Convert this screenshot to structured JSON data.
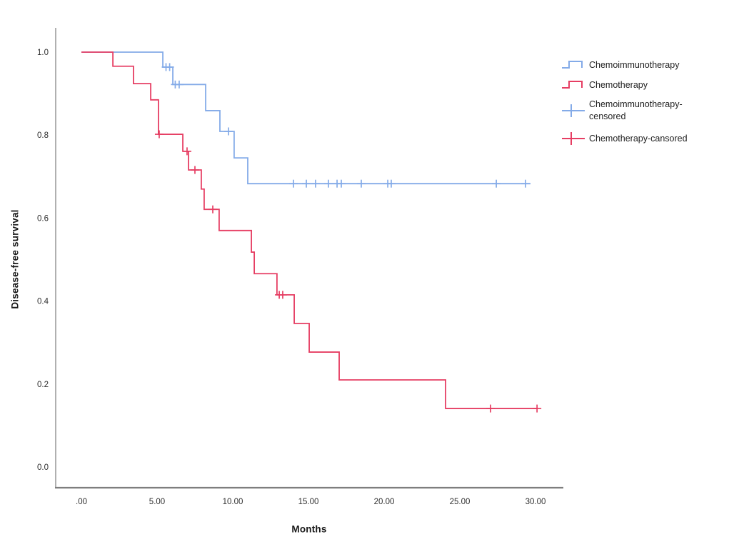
{
  "figure": {
    "background": "#ffffff",
    "axis_color": "#8f8f8f",
    "tick_text_color": "#2e2e2e",
    "title_text_color": "#1a1a1a"
  },
  "chart_data": {
    "type": "line",
    "subtype": "kaplan-meier-step",
    "title": "",
    "xlabel": "Months",
    "ylabel": "Disease-free survival",
    "x_ticks": [
      ".00",
      "5.00",
      "10.00",
      "15.00",
      "20.00",
      "25.00",
      "30.00"
    ],
    "x_tick_values": [
      0,
      5,
      10,
      15,
      20,
      25,
      30
    ],
    "y_ticks": [
      "1.0",
      "0.8",
      "0.6",
      "0.4",
      "0.2",
      "0.0"
    ],
    "y_tick_values": [
      1.0,
      0.8,
      0.6,
      0.4,
      0.2,
      0.0
    ],
    "xlim": [
      -1.7,
      31.8
    ],
    "ylim": [
      -0.05,
      1.06
    ],
    "grid": false,
    "legend_position": "right",
    "series": [
      {
        "name": "Chemoimmunotherapy",
        "color": "#84ABE8",
        "start": [
          0,
          1.0
        ],
        "steps": [
          [
            5.38,
            0.964
          ],
          [
            6.04,
            0.922
          ],
          [
            8.21,
            0.859
          ],
          [
            9.15,
            0.809
          ],
          [
            10.09,
            0.745
          ],
          [
            10.99,
            0.683
          ]
        ],
        "end_time": 29.67,
        "censored": [
          [
            5.59,
            0.964
          ],
          [
            5.83,
            0.964
          ],
          [
            6.2,
            0.922
          ],
          [
            6.46,
            0.922
          ],
          [
            9.72,
            0.809
          ],
          [
            14.01,
            0.683
          ],
          [
            14.86,
            0.683
          ],
          [
            15.47,
            0.683
          ],
          [
            16.32,
            0.683
          ],
          [
            16.89,
            0.683
          ],
          [
            17.17,
            0.683
          ],
          [
            18.49,
            0.683
          ],
          [
            20.24,
            0.683
          ],
          [
            20.47,
            0.683
          ],
          [
            27.41,
            0.683
          ],
          [
            29.34,
            0.683
          ]
        ]
      },
      {
        "name": "Chemotherapy",
        "color": "#E63E63",
        "start": [
          0,
          1.0
        ],
        "steps": [
          [
            2.08,
            0.966
          ],
          [
            3.44,
            0.924
          ],
          [
            4.58,
            0.885
          ],
          [
            5.09,
            0.802
          ],
          [
            6.7,
            0.761
          ],
          [
            7.08,
            0.716
          ],
          [
            7.92,
            0.67
          ],
          [
            8.11,
            0.621
          ],
          [
            9.1,
            0.57
          ],
          [
            11.23,
            0.518
          ],
          [
            11.42,
            0.466
          ],
          [
            12.92,
            0.415
          ],
          [
            14.06,
            0.346
          ],
          [
            15.05,
            0.277
          ],
          [
            17.03,
            0.21
          ],
          [
            24.06,
            0.141
          ]
        ],
        "end_time": 30.1,
        "censored": [
          [
            5.14,
            0.802
          ],
          [
            6.98,
            0.761
          ],
          [
            7.5,
            0.716
          ],
          [
            8.68,
            0.621
          ],
          [
            13.07,
            0.415
          ],
          [
            13.3,
            0.415
          ],
          [
            27.03,
            0.141
          ],
          [
            30.1,
            0.141
          ]
        ]
      }
    ],
    "legend": [
      {
        "label": "Chemoimmunotherapy",
        "type": "step",
        "color": "#84ABE8"
      },
      {
        "label": "Chemotherapy",
        "type": "step",
        "color": "#E63E63"
      },
      {
        "label": "Chemoimmunotherapy-\ncensored",
        "type": "plus",
        "color": "#84ABE8"
      },
      {
        "label": "Chemotherapy-cansored",
        "type": "plus",
        "color": "#E63E63"
      }
    ]
  }
}
